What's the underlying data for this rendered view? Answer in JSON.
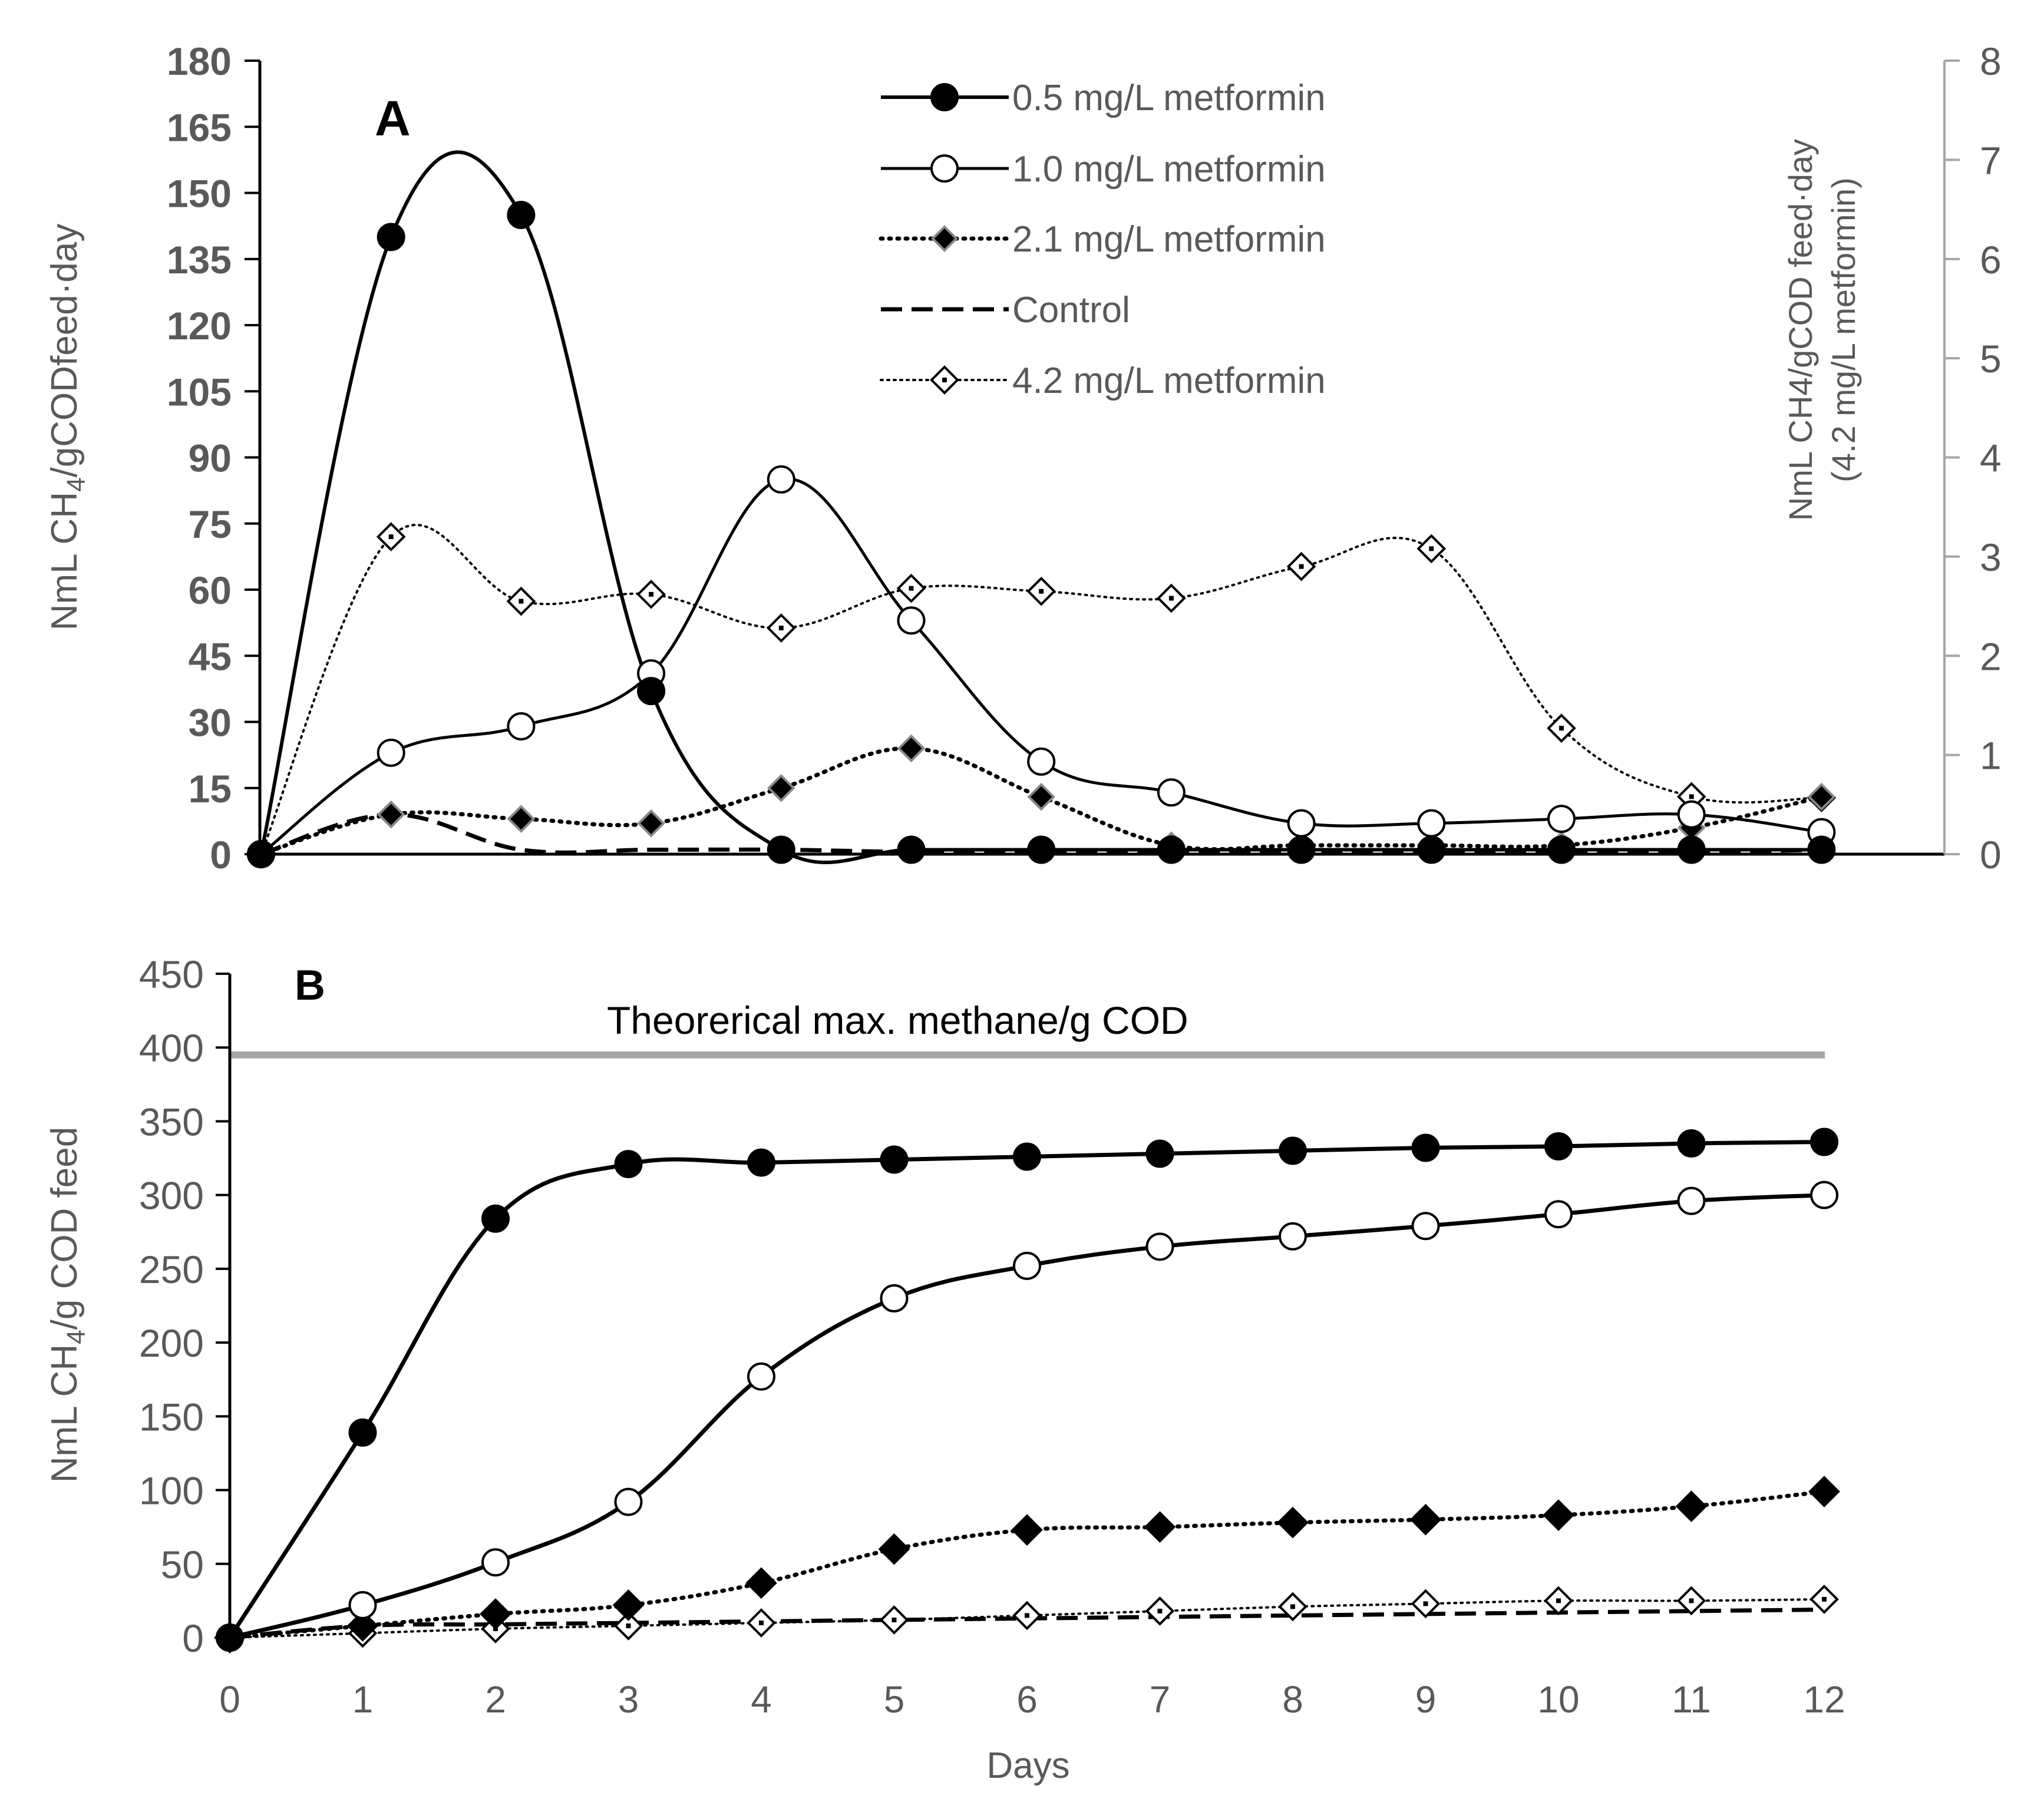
{
  "colors": {
    "axis": "#000000",
    "tick_label": "#595959",
    "axis_label": "#595959",
    "panel_letter": "#000000",
    "series": "#000000",
    "reference_line": "#a6a6a6",
    "background": "#ffffff"
  },
  "legend": {
    "position": "top-right of panel A",
    "entries": [
      {
        "label": "0.5 mg/L metformin",
        "marker": "filled-circle",
        "line": "solid"
      },
      {
        "label": "1.0 mg/L metformin",
        "marker": "open-circle",
        "line": "solid"
      },
      {
        "label": "2.1 mg/L metformin",
        "marker": "grey-diamond",
        "line": "dotted"
      },
      {
        "label": "Control",
        "marker": "none",
        "line": "dashed"
      },
      {
        "label": "4.2 mg/L metformin",
        "marker": "open-diamond",
        "line": "fine-dotted"
      }
    ]
  },
  "chart_data": [
    {
      "panel": "A",
      "type": "line",
      "smoothed": true,
      "title": "",
      "ylabel_main": "NmL CH",
      "ylabel_sub": "4",
      "ylabel_tail": "/gCODfeed·day",
      "y2label_line1": "NmL CH4/gCOD feed·day",
      "y2label_line2": "(4.2 mg/L metformin)",
      "xlim": [
        0,
        12
      ],
      "ylim": [
        0,
        180
      ],
      "y_ticks": [
        "0",
        "15",
        "30",
        "45",
        "60",
        "75",
        "90",
        "105",
        "120",
        "135",
        "150",
        "165",
        "180"
      ],
      "y2lim": [
        0,
        8
      ],
      "y2_ticks": [
        "0",
        "1",
        "2",
        "3",
        "4",
        "5",
        "6",
        "7",
        "8"
      ],
      "grid": false,
      "series": [
        {
          "name": "0.5 mg/L metformin",
          "axis": "left",
          "x": [
            0,
            1,
            2,
            3,
            4,
            5,
            6,
            7,
            8,
            9,
            10,
            11,
            12
          ],
          "values": [
            0,
            140,
            145,
            37,
            1,
            1,
            1,
            1,
            1,
            1,
            1,
            1,
            1
          ]
        },
        {
          "name": "1.0 mg/L metformin",
          "axis": "left",
          "x": [
            0,
            1,
            2,
            3,
            4,
            5,
            6,
            7,
            8,
            9,
            10,
            11,
            12
          ],
          "values": [
            0,
            23,
            29,
            41,
            85,
            53,
            21,
            14,
            7,
            7,
            8,
            9,
            5
          ]
        },
        {
          "name": "2.1 mg/L metformin",
          "axis": "left",
          "x": [
            0,
            1,
            2,
            3,
            4,
            5,
            6,
            7,
            8,
            9,
            10,
            11,
            12
          ],
          "values": [
            0,
            9,
            8,
            7,
            15,
            24,
            13,
            2,
            2,
            2,
            2,
            6,
            13
          ]
        },
        {
          "name": "Control",
          "axis": "left",
          "x": [
            0,
            1,
            2,
            3,
            4,
            5,
            6,
            7,
            8,
            9,
            10,
            11,
            12
          ],
          "values": [
            0,
            9,
            1,
            1,
            1,
            0.5,
            0.5,
            0.5,
            0.5,
            0.5,
            0.5,
            0.5,
            1
          ]
        },
        {
          "name": "4.2 mg/L metformin",
          "axis": "right",
          "x": [
            0,
            1,
            2,
            3,
            4,
            5,
            6,
            7,
            8,
            9,
            10,
            11,
            12
          ],
          "values": [
            0,
            3.2,
            2.55,
            2.62,
            2.28,
            2.68,
            2.65,
            2.58,
            2.9,
            3.08,
            1.27,
            0.58,
            0.57
          ]
        }
      ]
    },
    {
      "panel": "B",
      "type": "line",
      "smoothed": true,
      "title": "",
      "xlabel": "Days",
      "ylabel_main": "NmL CH",
      "ylabel_sub": "4",
      "ylabel_tail": "/g COD feed",
      "xlim": [
        0,
        12
      ],
      "x_ticks": [
        "0",
        "1",
        "2",
        "3",
        "4",
        "5",
        "6",
        "7",
        "8",
        "9",
        "10",
        "11",
        "12"
      ],
      "ylim": [
        0,
        450
      ],
      "y_ticks": [
        "0",
        "50",
        "100",
        "150",
        "200",
        "250",
        "300",
        "350",
        "400",
        "450"
      ],
      "grid": false,
      "reference_line": {
        "label": "Theorerical max. methane/g COD",
        "value": 395
      },
      "series": [
        {
          "name": "0.5 mg/L metformin",
          "x": [
            0,
            1,
            2,
            3,
            4,
            5,
            6,
            7,
            8,
            9,
            10,
            11,
            12
          ],
          "values": [
            0,
            139,
            284,
            321,
            322,
            324,
            326,
            328,
            330,
            332,
            333,
            335,
            336
          ]
        },
        {
          "name": "1.0 mg/L metformin",
          "x": [
            0,
            1,
            2,
            3,
            4,
            5,
            6,
            7,
            8,
            9,
            10,
            11,
            12
          ],
          "values": [
            0,
            22,
            51,
            92,
            177,
            230,
            252,
            265,
            272,
            279,
            287,
            296,
            300
          ]
        },
        {
          "name": "2.1 mg/L metformin",
          "x": [
            0,
            1,
            2,
            3,
            4,
            5,
            6,
            7,
            8,
            9,
            10,
            11,
            12
          ],
          "values": [
            0,
            8,
            16,
            22,
            37,
            60,
            73,
            75,
            78,
            80,
            83,
            89,
            99
          ]
        },
        {
          "name": "Control",
          "x": [
            0,
            1,
            2,
            3,
            4,
            5,
            6,
            7,
            8,
            9,
            10,
            11,
            12
          ],
          "values": [
            0,
            8,
            9,
            10,
            11,
            12,
            13,
            14,
            15,
            16,
            17,
            18,
            19
          ]
        },
        {
          "name": "4.2 mg/L metformin",
          "x": [
            0,
            1,
            2,
            3,
            4,
            5,
            6,
            7,
            8,
            9,
            10,
            11,
            12
          ],
          "values": [
            0,
            3,
            6,
            8,
            10,
            12,
            15,
            18,
            21,
            23,
            25,
            25,
            26
          ]
        }
      ]
    }
  ]
}
